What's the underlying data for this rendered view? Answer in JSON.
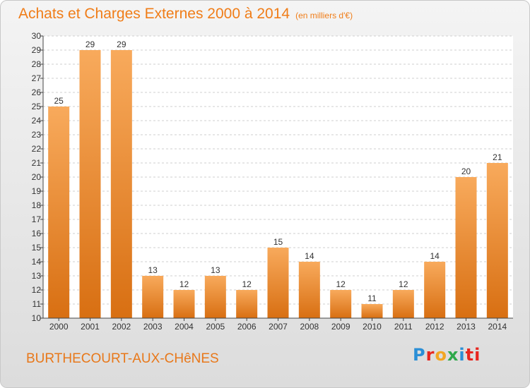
{
  "title": "Achats et Charges Externes 2000 à 2014",
  "subtitle": "(en milliers d'€)",
  "commune": "BURTHECOURT-AUX-CHêNES",
  "logo": {
    "letters": [
      "P",
      "r",
      "o",
      "x",
      "i",
      "ti"
    ]
  },
  "colors": {
    "bar_light": "#f8aa5c",
    "bar_dark": "#d86f12",
    "accent": "#f07d18",
    "grid": "#cfcfcf"
  },
  "chart_data": {
    "type": "bar",
    "categories": [
      "2000",
      "2001",
      "2002",
      "2003",
      "2004",
      "2005",
      "2006",
      "2007",
      "2008",
      "2009",
      "2010",
      "2011",
      "2012",
      "2013",
      "2014"
    ],
    "values": [
      25,
      29,
      29,
      13,
      12,
      13,
      12,
      15,
      14,
      12,
      11,
      12,
      14,
      20,
      21
    ],
    "data_labels": [
      "25",
      "29",
      "29",
      "13",
      "12",
      "13",
      "12",
      "15",
      "14",
      "12",
      "11",
      "12",
      "14",
      "20",
      "21"
    ],
    "y_ticks": [
      "10",
      "11",
      "12",
      "13",
      "14",
      "15",
      "16",
      "17",
      "18",
      "19",
      "20",
      "21",
      "22",
      "23",
      "24",
      "25",
      "26",
      "27",
      "28",
      "29",
      "30"
    ],
    "ylim": [
      10,
      30
    ],
    "grid": true
  }
}
